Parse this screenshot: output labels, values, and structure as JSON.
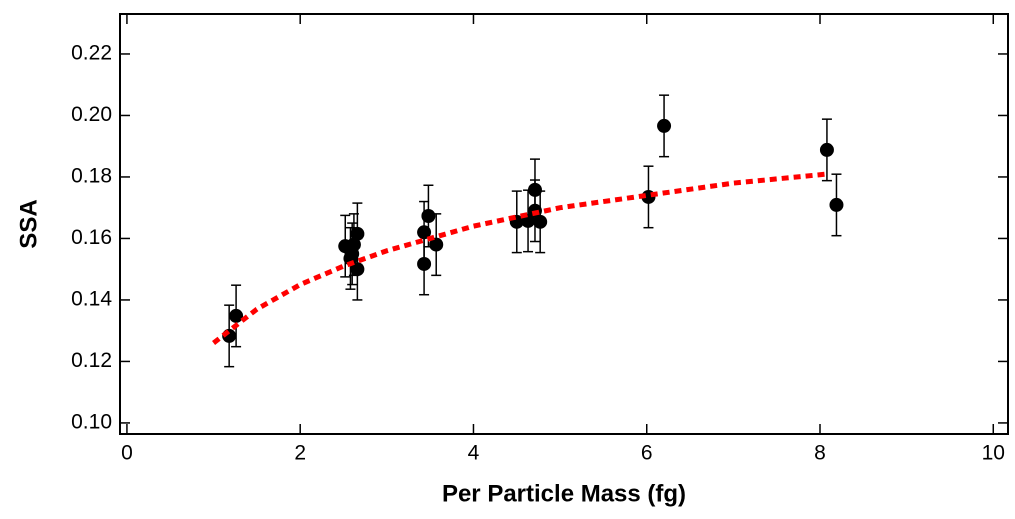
{
  "chart_data": {
    "type": "scatter",
    "x_label": "Per Particle Mass (fg)",
    "y_label": "SSA",
    "xlim": [
      -0.08,
      10.17
    ],
    "ylim": [
      0.0964,
      0.233
    ],
    "xticks": [
      0,
      2,
      4,
      6,
      8,
      10
    ],
    "yticks": [
      {
        "value": 0.1,
        "label": "0.10"
      },
      {
        "value": 0.12,
        "label": "0.12"
      },
      {
        "value": 0.14,
        "label": "0.14"
      },
      {
        "value": 0.16,
        "label": "0.16"
      },
      {
        "value": 0.18,
        "label": "0.18"
      },
      {
        "value": 0.2,
        "label": "0.20"
      },
      {
        "value": 0.22,
        "label": "0.22"
      }
    ],
    "series": [
      {
        "type": "scatter",
        "color": "#000000",
        "x": [
          1.18,
          1.26,
          2.52,
          2.58,
          2.62,
          2.66,
          2.66,
          2.6,
          3.43,
          3.48,
          3.43,
          3.57,
          4.5,
          4.63,
          4.71,
          4.71,
          4.77,
          6.02,
          6.2,
          8.08,
          8.19
        ],
        "values": [
          0.1283,
          0.1348,
          0.1575,
          0.1535,
          0.158,
          0.1615,
          0.15,
          0.155,
          0.162,
          0.1673,
          0.1517,
          0.158,
          0.1654,
          0.1657,
          0.1758,
          0.169,
          0.1654,
          0.1735,
          0.1966,
          0.1888,
          0.1709
        ],
        "errors": [
          0.01,
          0.01,
          0.01,
          0.01,
          0.01,
          0.01,
          0.01,
          0.01,
          0.01,
          0.01,
          0.01,
          0.01,
          0.01,
          0.01,
          0.01,
          0.01,
          0.01,
          0.01,
          0.01,
          0.01,
          0.01
        ]
      },
      {
        "type": "line",
        "color": "#ff0000",
        "dashed": true,
        "x": [
          1,
          1.5,
          2,
          2.5,
          3,
          3.5,
          4,
          4.5,
          5,
          6,
          7,
          8.1
        ],
        "values": [
          0.126,
          0.137,
          0.145,
          0.151,
          0.156,
          0.16,
          0.164,
          0.167,
          0.17,
          0.174,
          0.178,
          0.181
        ]
      }
    ]
  }
}
